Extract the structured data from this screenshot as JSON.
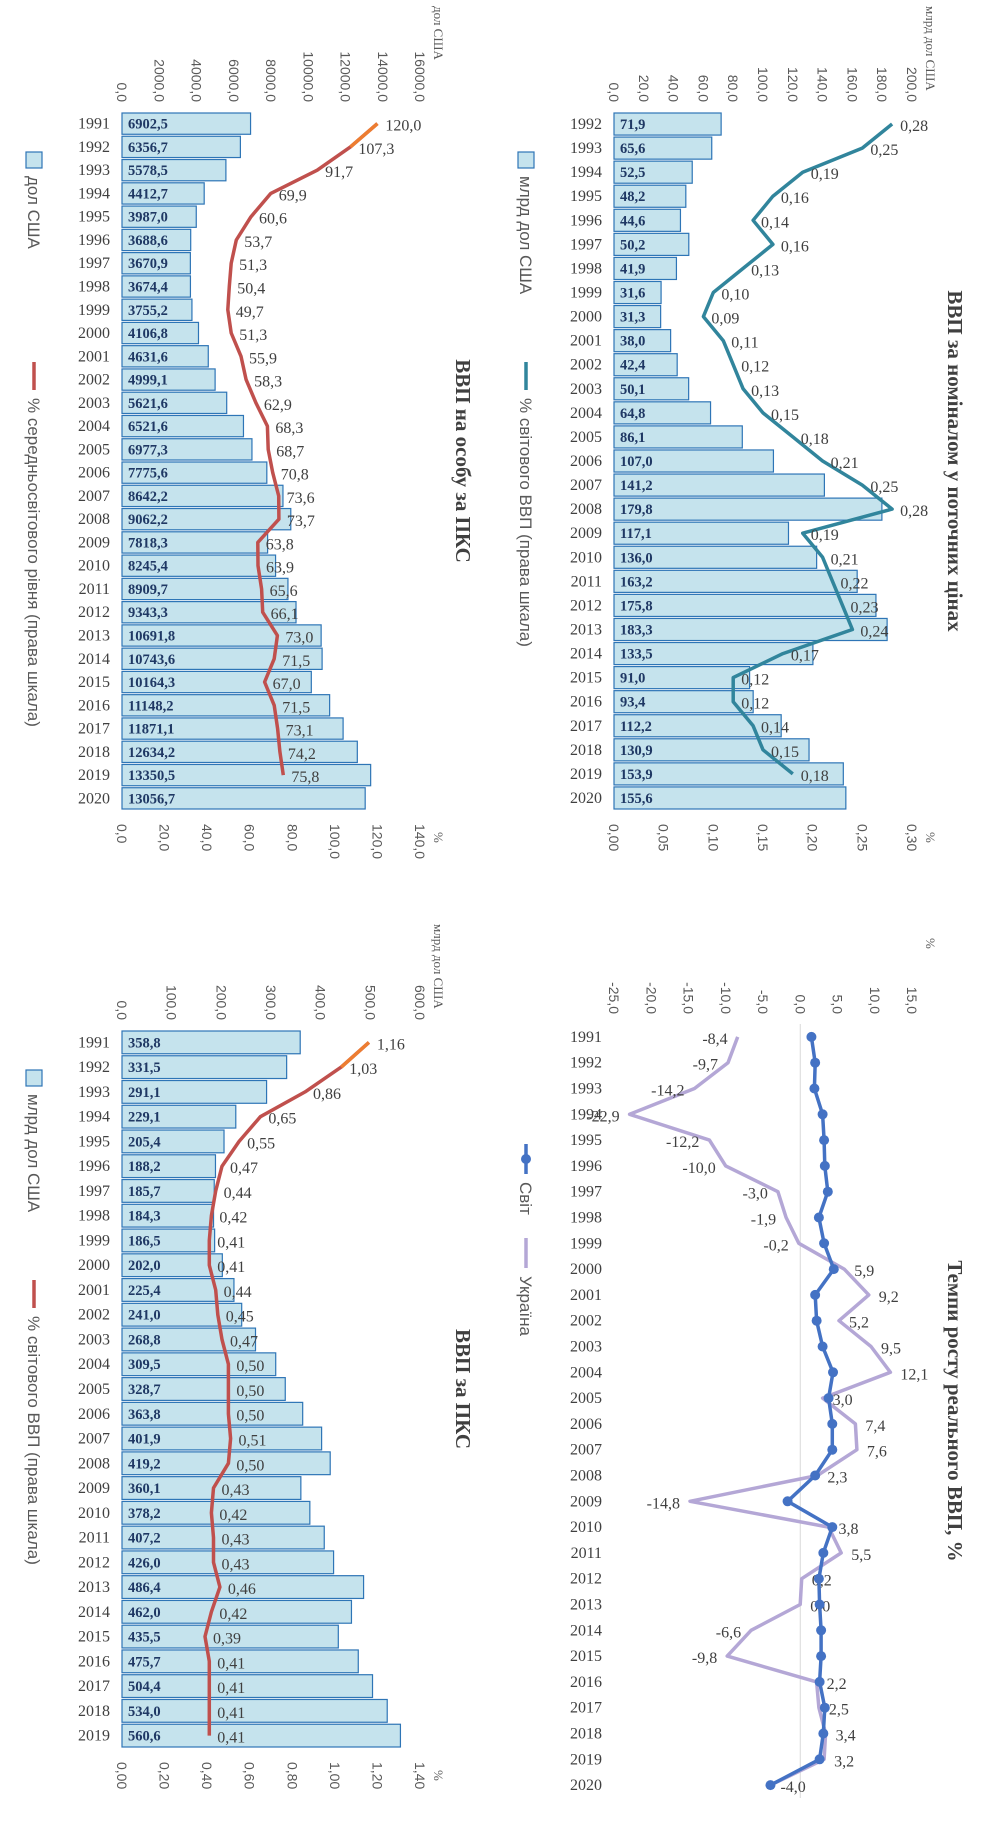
{
  "chart_data": [
    {
      "id": "gdp-ppp-per-capita",
      "type": "bar",
      "title": "ВВП на особу за ПКС",
      "unit_left": "дол США",
      "unit_right": "%",
      "left_axis_ticks": [
        "0,0",
        "2000,0",
        "4000,0",
        "6000,0",
        "8000,0",
        "10000,0",
        "12000,0",
        "14000,0",
        "16000,0"
      ],
      "right_axis_ticks": [
        "0,0",
        "20,0",
        "40,0",
        "60,0",
        "80,0",
        "100,0",
        "120,0",
        "140,0"
      ],
      "ylim": [
        0,
        16000
      ],
      "y2lim": [
        0,
        140
      ],
      "categories": [
        "1991",
        "1992",
        "1993",
        "1994",
        "1995",
        "1996",
        "1997",
        "1998",
        "1999",
        "2000",
        "2001",
        "2002",
        "2003",
        "2004",
        "2005",
        "2006",
        "2007",
        "2008",
        "2009",
        "2010",
        "2011",
        "2012",
        "2013",
        "2014",
        "2015",
        "2016",
        "2017",
        "2018",
        "2019",
        "2020"
      ],
      "values": [
        6902.5,
        6356.7,
        5578.5,
        4412.7,
        3987.0,
        3688.6,
        3670.9,
        3674.4,
        3755.2,
        4106.8,
        4631.6,
        4999.1,
        5621.6,
        6521.6,
        6977.3,
        7775.6,
        8642.2,
        9062.2,
        7818.3,
        8245.4,
        8909.7,
        9343.3,
        10691.8,
        10743.6,
        10164.3,
        11148.2,
        11871.1,
        12634.2,
        13350.5,
        13056.7
      ],
      "value_labels": [
        "6902,5",
        "6356,7",
        "5578,5",
        "4412,7",
        "3987,0",
        "3688,6",
        "3670,9",
        "3674,4",
        "3755,2",
        "4106,8",
        "4631,6",
        "4999,1",
        "5621,6",
        "6521,6",
        "6977,3",
        "7775,6",
        "8642,2",
        "9062,2",
        "7818,3",
        "8245,4",
        "8909,7",
        "9343,3",
        "10691,8",
        "10743,6",
        "10164,3",
        "11148,2",
        "11871,1",
        "12634,2",
        "13350,5",
        "13056,7"
      ],
      "line_values": [
        120.0,
        107.3,
        91.7,
        69.9,
        60.6,
        53.7,
        51.3,
        50.4,
        49.7,
        51.3,
        55.9,
        58.3,
        62.9,
        68.3,
        68.7,
        70.8,
        73.6,
        73.7,
        63.8,
        63.9,
        65.6,
        66.1,
        73.0,
        71.5,
        67.0,
        71.5,
        73.1,
        74.2,
        75.8
      ],
      "line_labels": [
        "120,0",
        "107,3",
        "91,7",
        "69,9",
        "60,6",
        "53,7",
        "51,3",
        "50,4",
        "49,7",
        "51,3",
        "55,9",
        "58,3",
        "62,9",
        "68,3",
        "68,7",
        "70,8",
        "73,6",
        "73,7",
        "63,8",
        "63,9",
        "65,6",
        "66,1",
        "73,0",
        "71,5",
        "67,0",
        "71,5",
        "73,1",
        "74,2",
        "75,8"
      ],
      "legend": [
        "дол США",
        "% середньосвітового рівня (права шкала)"
      ],
      "bar_color": "#c5e3ed",
      "bar_border": "#2e75b6",
      "line_color": "#c0504d",
      "line_head_color": "#ed7d31"
    },
    {
      "id": "gdp-nominal",
      "type": "bar",
      "title": "ВВП за номіналом у поточних цінах",
      "unit_left": "млрд дол США",
      "unit_right": "%",
      "left_axis_ticks": [
        "0,0",
        "20,0",
        "40,0",
        "60,0",
        "80,0",
        "100,0",
        "120,0",
        "140,0",
        "160,0",
        "180,0",
        "200,0"
      ],
      "right_axis_ticks": [
        "0,00",
        "0,05",
        "0,10",
        "0,15",
        "0,20",
        "0,25",
        "0,30"
      ],
      "ylim": [
        0,
        200
      ],
      "y2lim": [
        0,
        0.3
      ],
      "categories": [
        "1992",
        "1993",
        "1994",
        "1995",
        "1996",
        "1997",
        "1998",
        "1999",
        "2000",
        "2001",
        "2002",
        "2003",
        "2004",
        "2005",
        "2006",
        "2007",
        "2008",
        "2009",
        "2010",
        "2011",
        "2012",
        "2013",
        "2014",
        "2015",
        "2016",
        "2017",
        "2018",
        "2019",
        "2020"
      ],
      "values": [
        71.9,
        65.6,
        52.5,
        48.2,
        44.6,
        50.2,
        41.9,
        31.6,
        31.3,
        38.0,
        42.4,
        50.1,
        64.8,
        86.1,
        107.0,
        141.2,
        179.8,
        117.1,
        136.0,
        163.2,
        175.8,
        183.3,
        133.5,
        91.0,
        93.4,
        112.2,
        130.9,
        153.9,
        155.6
      ],
      "value_labels": [
        "71,9",
        "65,6",
        "52,5",
        "48,2",
        "44,6",
        "50,2",
        "41,9",
        "31,6",
        "31,3",
        "38,0",
        "42,4",
        "50,1",
        "64,8",
        "86,1",
        "107,0",
        "141,2",
        "179,8",
        "117,1",
        "136,0",
        "163,2",
        "175,8",
        "183,3",
        "133,5",
        "91,0",
        "93,4",
        "112,2",
        "130,9",
        "153,9",
        "155,6"
      ],
      "line_values": [
        0.28,
        0.25,
        0.19,
        0.16,
        0.14,
        0.16,
        0.13,
        0.1,
        0.09,
        0.11,
        0.12,
        0.13,
        0.15,
        0.18,
        0.21,
        0.25,
        0.28,
        0.19,
        0.21,
        0.22,
        0.23,
        0.24,
        0.17,
        0.12,
        0.12,
        0.14,
        0.15,
        0.18
      ],
      "line_labels": [
        "0,28",
        "0,25",
        "0,19",
        "0,16",
        "0,14",
        "0,16",
        "0,13",
        "0,10",
        "0,09",
        "0,11",
        "0,12",
        "0,13",
        "0,15",
        "0,18",
        "0,21",
        "0,25",
        "0,28",
        "0,19",
        "0,21",
        "0,22",
        "0,23",
        "0,24",
        "0,17",
        "0,12",
        "0,12",
        "0,14",
        "0,15",
        "0,18"
      ],
      "legend": [
        "млрд дол США",
        "% світового ВВП (права шкала)"
      ],
      "bar_color": "#c5e3ed",
      "bar_border": "#2e75b6",
      "line_color": "#31859c"
    },
    {
      "id": "gdp-ppp",
      "type": "bar",
      "title": "ВВП за ПКС",
      "unit_left": "млрд дол США",
      "unit_right": "%",
      "left_axis_ticks": [
        "0,0",
        "100,0",
        "200,0",
        "300,0",
        "400,0",
        "500,0",
        "600,0"
      ],
      "right_axis_ticks": [
        "0,00",
        "0,20",
        "0,40",
        "0,60",
        "0,80",
        "1,00",
        "1,20",
        "1,40"
      ],
      "ylim": [
        0,
        600
      ],
      "y2lim": [
        0,
        1.4
      ],
      "categories": [
        "1991",
        "1992",
        "1993",
        "1994",
        "1995",
        "1996",
        "1997",
        "1998",
        "1999",
        "2000",
        "2001",
        "2002",
        "2003",
        "2004",
        "2005",
        "2006",
        "2007",
        "2008",
        "2009",
        "2010",
        "2011",
        "2012",
        "2013",
        "2014",
        "2015",
        "2016",
        "2017",
        "2018",
        "2019"
      ],
      "values": [
        358.8,
        331.5,
        291.1,
        229.1,
        205.4,
        188.2,
        185.7,
        184.3,
        186.5,
        202.0,
        225.4,
        241.0,
        268.8,
        309.5,
        328.7,
        363.8,
        401.9,
        419.2,
        360.1,
        378.2,
        407.2,
        426.0,
        486.4,
        462.0,
        435.5,
        475.7,
        504.4,
        534.0,
        560.6
      ],
      "value_labels": [
        "358,8",
        "331,5",
        "291,1",
        "229,1",
        "205,4",
        "188,2",
        "185,7",
        "184,3",
        "186,5",
        "202,0",
        "225,4",
        "241,0",
        "268,8",
        "309,5",
        "328,7",
        "363,8",
        "401,9",
        "419,2",
        "360,1",
        "378,2",
        "407,2",
        "426,0",
        "486,4",
        "462,0",
        "435,5",
        "475,7",
        "504,4",
        "534,0",
        "560,6"
      ],
      "line_values": [
        1.16,
        1.03,
        0.86,
        0.65,
        0.55,
        0.47,
        0.44,
        0.42,
        0.41,
        0.41,
        0.44,
        0.45,
        0.47,
        0.5,
        0.5,
        0.5,
        0.51,
        0.5,
        0.43,
        0.42,
        0.43,
        0.43,
        0.46,
        0.42,
        0.39,
        0.41,
        0.41,
        0.41,
        0.41
      ],
      "line_labels": [
        "1,16",
        "1,03",
        "0,86",
        "0,65",
        "0,55",
        "0,47",
        "0,44",
        "0,42",
        "0,41",
        "0,41",
        "0,44",
        "0,45",
        "0,47",
        "0,50",
        "0,50",
        "0,50",
        "0,51",
        "0,50",
        "0,43",
        "0,42",
        "0,43",
        "0,43",
        "0,46",
        "0,42",
        "0,39",
        "0,41",
        "0,41",
        "0,41",
        "0,41"
      ],
      "legend": [
        "млрд дол США",
        "% світового ВВП (права шкала)"
      ],
      "bar_color": "#c5e3ed",
      "bar_border": "#2e75b6",
      "line_color": "#c0504d",
      "line_head_color": "#ed7d31"
    },
    {
      "id": "real-gdp-growth",
      "type": "line",
      "title": "Темпи росту реального ВВП, %",
      "unit_left": "%",
      "left_axis_ticks": [
        "-25,0",
        "-20,0",
        "-15,0",
        "-10,0",
        "-5,0",
        "0,0",
        "5,0",
        "10,0",
        "15,0"
      ],
      "ylim": [
        -25,
        15
      ],
      "categories": [
        "1991",
        "1992",
        "1993",
        "1994",
        "1995",
        "1996",
        "1997",
        "1998",
        "1999",
        "2000",
        "2001",
        "2002",
        "2003",
        "2004",
        "2005",
        "2006",
        "2007",
        "2008",
        "2009",
        "2010",
        "2011",
        "2012",
        "2013",
        "2014",
        "2015",
        "2016",
        "2017",
        "2018",
        "2019",
        "2020"
      ],
      "series": [
        {
          "name": "Світ",
          "color": "#4472c4",
          "values": [
            1.5,
            2.0,
            1.9,
            3.0,
            3.2,
            3.3,
            3.7,
            2.5,
            3.2,
            4.5,
            2.0,
            2.2,
            3.0,
            4.4,
            3.8,
            4.3,
            4.3,
            2.0,
            -1.7,
            4.3,
            3.1,
            2.5,
            2.6,
            2.8,
            2.8,
            2.6,
            3.3,
            3.1,
            2.6,
            -4.0
          ],
          "labels": [
            "",
            "",
            "",
            "",
            "",
            "",
            "",
            "",
            "",
            "",
            "",
            "",
            "",
            "",
            "",
            "",
            "",
            "",
            "",
            "",
            "",
            "",
            "",
            "",
            "",
            "",
            "",
            "",
            "",
            "-4,0"
          ]
        },
        {
          "name": "Україна",
          "color": "#b4a7d6",
          "values": [
            -8.4,
            -9.7,
            -14.2,
            -22.9,
            -12.2,
            -10.0,
            -3.0,
            -1.9,
            -0.2,
            5.9,
            9.2,
            5.2,
            9.5,
            12.1,
            3.0,
            7.4,
            7.6,
            2.3,
            -14.8,
            3.8,
            5.5,
            0.2,
            0.0,
            -6.6,
            -9.8,
            2.2,
            2.5,
            3.4,
            3.2,
            -4.0
          ],
          "labels": [
            "-8,4",
            "-9,7",
            "-14,2",
            "-22,9",
            "-12,2",
            "-10,0",
            "-3,0",
            "-1,9",
            "-0,2",
            "5,9",
            "9,2",
            "5,2",
            "9,5",
            "12,1",
            "3,0",
            "7,4",
            "7,6",
            "2,3",
            "-14,8",
            "3,8",
            "5,5",
            "0,2",
            "0,0",
            "-6,6",
            "-9,8",
            "2,2",
            "2,5",
            "3,4",
            "3,2",
            ""
          ]
        }
      ],
      "legend": [
        "Світ",
        "Україна"
      ]
    }
  ]
}
